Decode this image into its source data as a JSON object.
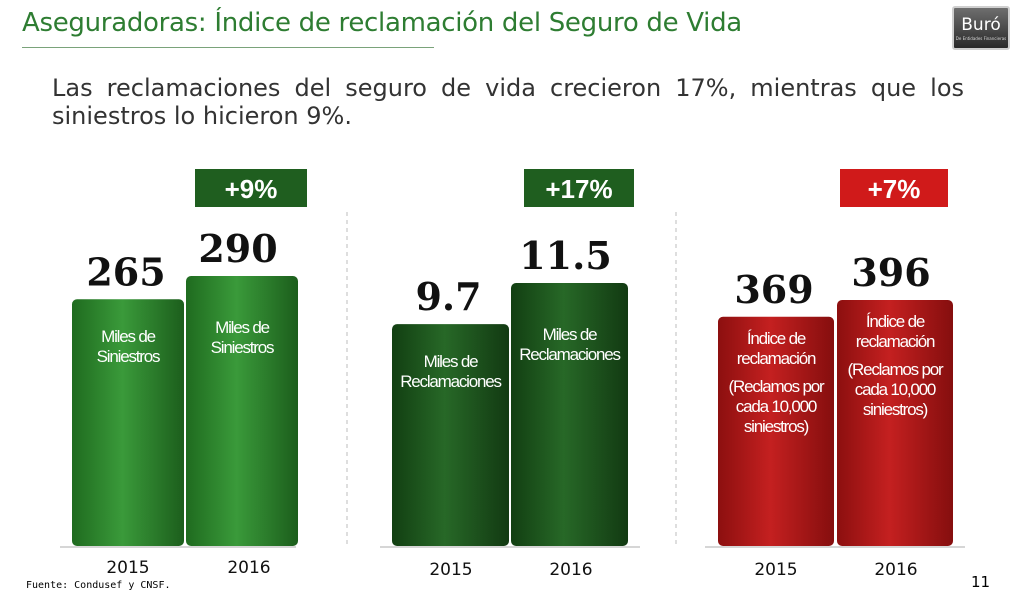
{
  "header": {
    "title": "Aseguradoras: Índice de reclamación del Seguro de Vida",
    "subtitle": "Las reclamaciones del seguro de vida crecieron 17%, mientras que los siniestros lo hicieron 9%."
  },
  "logo": {
    "main": "Buró",
    "sub": "De Entidades Financieras"
  },
  "colors": {
    "green_bar": "#2f8a2f",
    "dark_green_bar": "#1e5a1e",
    "red_bar": "#b01818",
    "change_green": "#1f5e1f",
    "change_red": "#d01a1a"
  },
  "chart_data": [
    {
      "type": "bar",
      "categories": [
        "2015",
        "2016"
      ],
      "values": [
        265,
        290
      ],
      "value_labels": [
        "265",
        "290"
      ],
      "bar_labels": [
        "Miles de Siniestros",
        "Miles de Siniestros"
      ],
      "change_label": "+9%",
      "color": "green"
    },
    {
      "type": "bar",
      "categories": [
        "2015",
        "2016"
      ],
      "values": [
        9.7,
        11.5
      ],
      "value_labels": [
        "9.7",
        "11.5"
      ],
      "bar_labels": [
        "Miles de Reclamaciones",
        "Miles de Reclamaciones"
      ],
      "change_label": "+17%",
      "color": "dark-green"
    },
    {
      "type": "bar",
      "categories": [
        "2015",
        "2016"
      ],
      "values": [
        369,
        396
      ],
      "value_labels": [
        "369",
        "396"
      ],
      "bar_labels": [
        "Índice de reclamación",
        "Índice de reclamación"
      ],
      "bar_sublabels": [
        "(Reclamos por cada 10,000 siniestros)",
        "(Reclamos por cada 10,000 siniestros)"
      ],
      "change_label": "+7%",
      "color": "red"
    }
  ],
  "footer": {
    "source": "Fuente: Condusef y CNSF.",
    "page": "11"
  }
}
